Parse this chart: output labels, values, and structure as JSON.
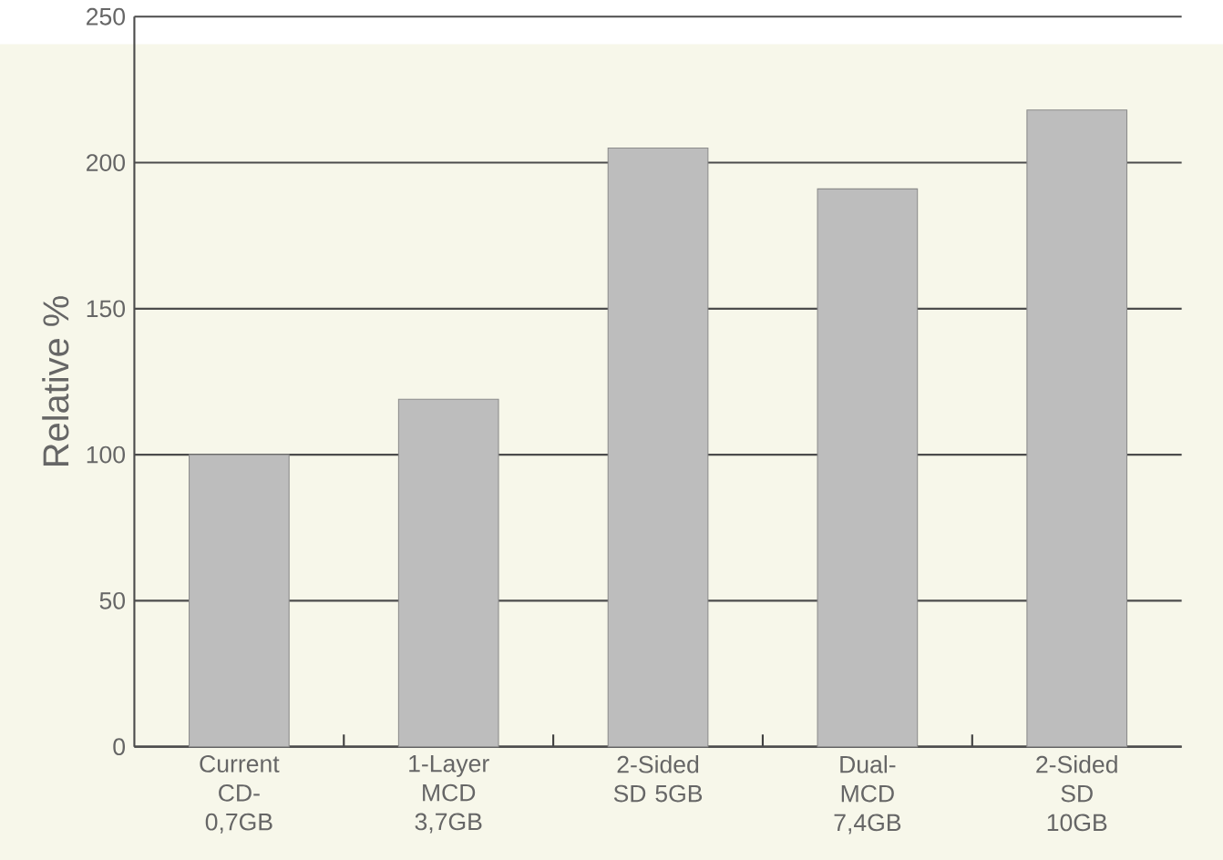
{
  "chart_data": {
    "type": "bar",
    "ylabel": "Relative %",
    "categories": [
      "Current CD- 0,7GB",
      "1-Layer MCD 3,7GB",
      "2-Sided SD 5GB",
      "Dual- MCD 7,4GB",
      "2-Sided SD 10GB"
    ],
    "values": [
      100,
      119,
      205,
      191,
      218
    ],
    "color": "#bdbdbd",
    "ylim": [
      0,
      250
    ],
    "yticks": [
      0,
      50,
      100,
      150,
      200,
      250
    ],
    "grid": "y"
  }
}
